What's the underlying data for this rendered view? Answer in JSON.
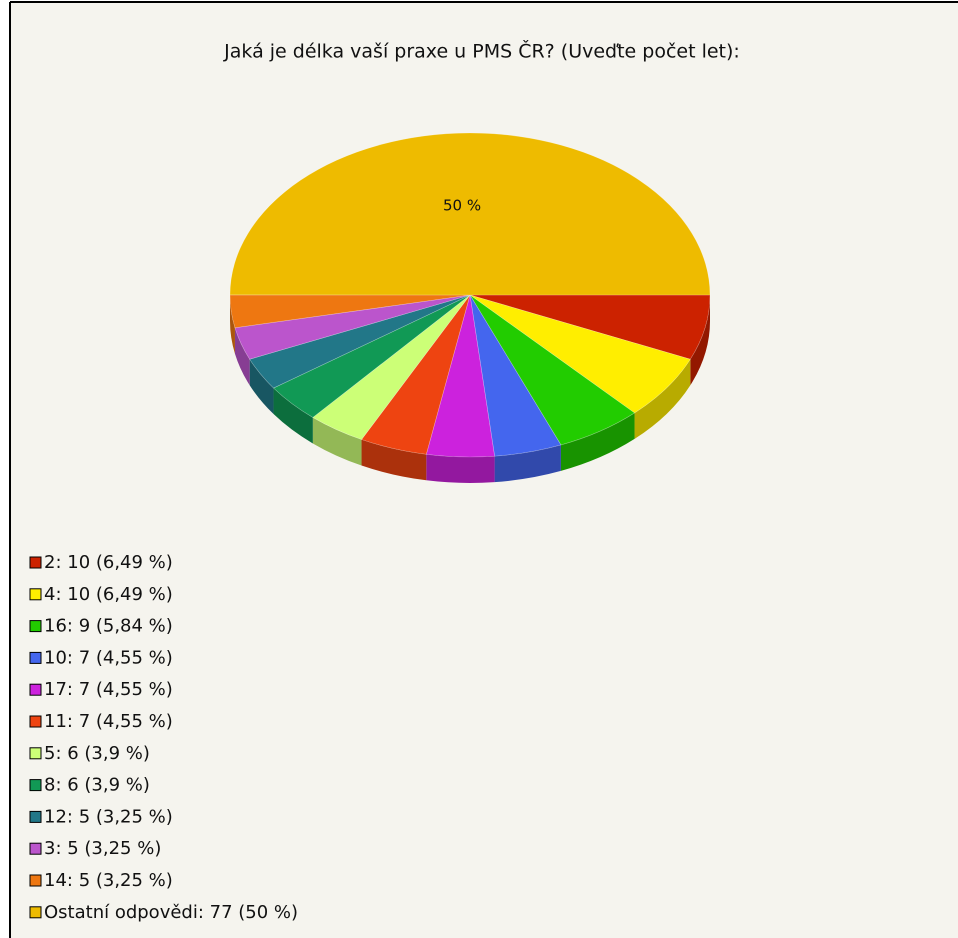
{
  "chart_data": {
    "type": "pie",
    "title": "Jaká je délka vaší praxe u PMS ČR? (Uveďte počet let):",
    "categories": [
      "2: 10 (6,49 %)",
      "4: 10 (6,49 %)",
      "16: 9 (5,84 %)",
      "10: 7 (4,55 %)",
      "17: 7 (4,55 %)",
      "11: 7 (4,55 %)",
      "5: 6 (3,9 %)",
      "8: 6 (3,9 %)",
      "12: 5 (3,25 %)",
      "3: 5 (3,25 %)",
      "14: 5 (3,25 %)",
      "Ostatní odpovědi: 77 (50 %)"
    ],
    "values": [
      6.49,
      6.49,
      5.84,
      4.55,
      4.55,
      4.55,
      3.9,
      3.9,
      3.25,
      3.25,
      3.25,
      50
    ],
    "value_labels": [
      null,
      null,
      null,
      null,
      null,
      null,
      null,
      null,
      null,
      null,
      null,
      "50 %"
    ],
    "colors": [
      "#cc2200",
      "#ffee00",
      "#22cc00",
      "#4466ee",
      "#cc22dd",
      "#ee4411",
      "#ccff77",
      "#119955",
      "#227788",
      "#bb55cc",
      "#ee7711",
      "#eebb00"
    ],
    "legend": "bottom-left"
  }
}
